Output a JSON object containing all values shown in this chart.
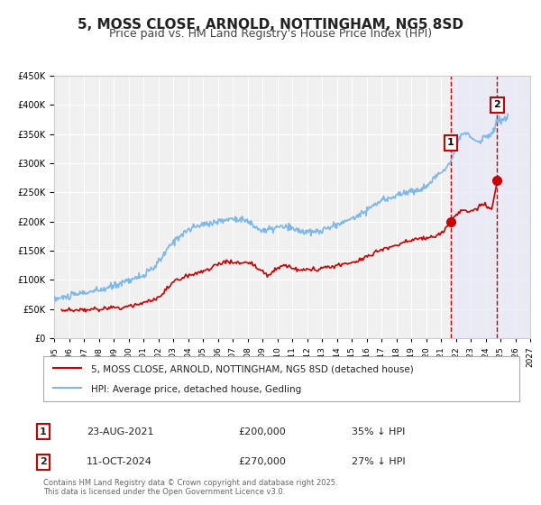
{
  "title": "5, MOSS CLOSE, ARNOLD, NOTTINGHAM, NG5 8SD",
  "subtitle": "Price paid vs. HM Land Registry's House Price Index (HPI)",
  "title_fontsize": 11,
  "subtitle_fontsize": 9,
  "background_color": "#ffffff",
  "plot_bg_color": "#f0f0f0",
  "grid_color": "#ffffff",
  "hpi_color": "#7eb7e8",
  "price_color": "#cc0000",
  "marker1_date_num": 2021.65,
  "marker2_date_num": 2024.78,
  "marker1_price": 200000,
  "marker2_price": 270000,
  "marker1_label": "1",
  "marker2_label": "2",
  "marker1_hpi": 305000,
  "marker2_hpi": 370000,
  "shade_color": "#e8e8f8",
  "dashed_color": "#cc0000",
  "ylim": [
    0,
    450000
  ],
  "xlim_start": 1995,
  "xlim_end": 2027,
  "legend1": "5, MOSS CLOSE, ARNOLD, NOTTINGHAM, NG5 8SD (detached house)",
  "legend2": "HPI: Average price, detached house, Gedling",
  "annotation1_date": "23-AUG-2021",
  "annotation1_price": "£200,000",
  "annotation1_hpi": "35% ↓ HPI",
  "annotation2_date": "11-OCT-2024",
  "annotation2_price": "£270,000",
  "annotation2_hpi": "27% ↓ HPI",
  "footer": "Contains HM Land Registry data © Crown copyright and database right 2025.\nThis data is licensed under the Open Government Licence v3.0."
}
